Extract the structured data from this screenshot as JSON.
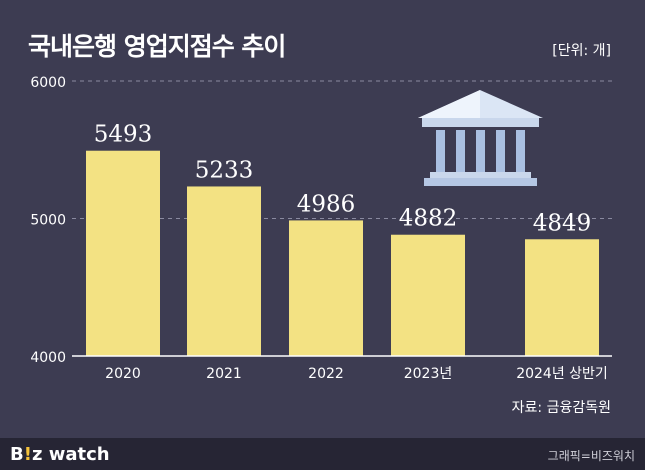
{
  "title": "국내은행 영업지점수 추이",
  "unit": "[단위: 개]",
  "source": "자료: 금융감독원",
  "footer": {
    "logo_main": "B",
    "logo_accent": "!",
    "logo_rest": "z watch",
    "credit": "그래픽=비즈워치"
  },
  "colors": {
    "background": "#3d3c52",
    "bar": "#f3e283",
    "axis": "#ffffff",
    "grid": "#8a8aa0"
  },
  "icon": "bank-building-icon",
  "chart_data": {
    "type": "bar",
    "categories": [
      "2020",
      "2021",
      "2022",
      "2023년",
      "2024년 상반기"
    ],
    "values": [
      5493,
      5233,
      4986,
      4882,
      4849
    ],
    "yticks": [
      4000,
      5000,
      6000
    ],
    "ylim": [
      4000,
      6000
    ],
    "grid": true
  }
}
